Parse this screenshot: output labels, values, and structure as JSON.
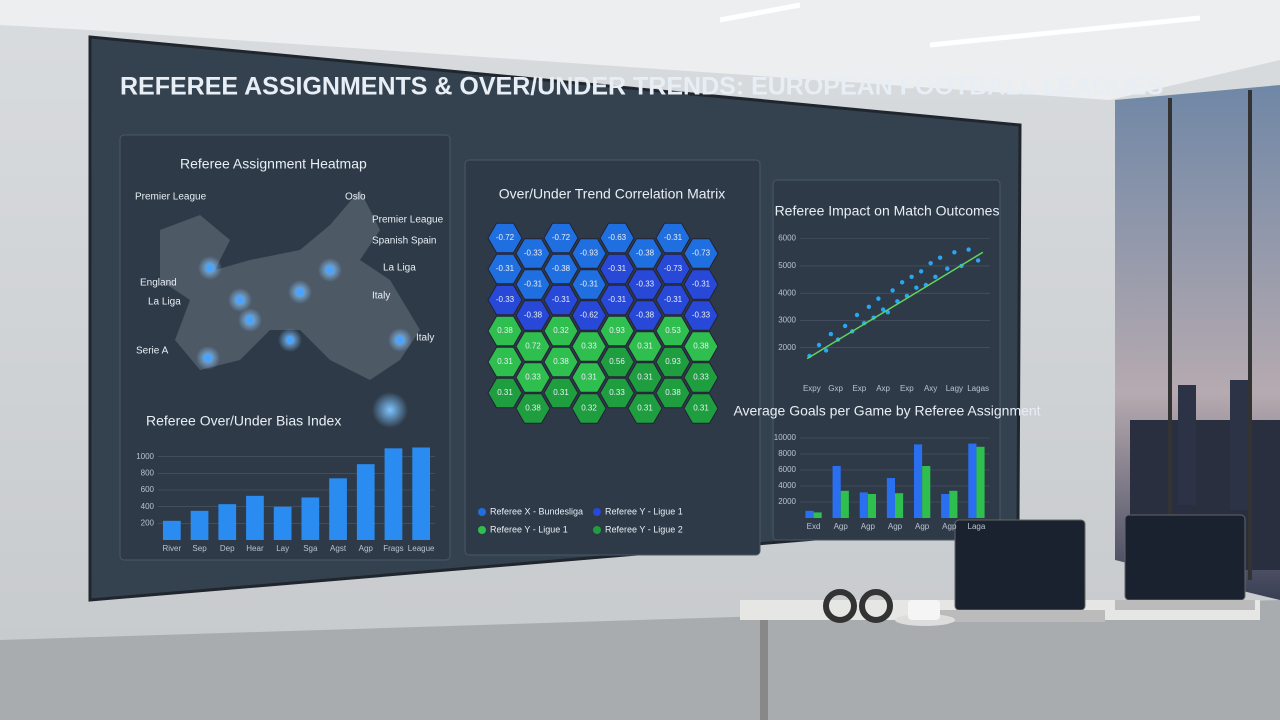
{
  "title": "REFEREE ASSIGNMENTS & OVER/UNDER TRENDS: EUROPEAN FOOTBALL LEAGUES",
  "chart_data": [
    {
      "type": "map",
      "title": "Referee Assignment Heatmap",
      "labels": [
        "Premier League",
        "Oslo",
        "Premier League",
        "Spanish Spain",
        "England",
        "La Liga",
        "La Liga",
        "Italy",
        "Italy",
        "Serie A"
      ]
    },
    {
      "type": "bar",
      "title": "Referee Over/Under Bias Index",
      "categories": [
        "River",
        "Sep",
        "Dep",
        "Hear",
        "Lay",
        "Sga",
        "Agst",
        "Agp",
        "Frags",
        "League"
      ],
      "values": [
        230,
        350,
        430,
        530,
        400,
        510,
        740,
        910,
        1100,
        1110
      ],
      "ylim": [
        0,
        1200
      ],
      "yticks": [
        200,
        400,
        600,
        800,
        1000
      ],
      "color": "#2a8cf0",
      "grid": true
    },
    {
      "type": "hexbin",
      "title": "Over/Under Trend Correlation Matrix",
      "series": [
        {
          "name": "Referee X - Bundesliga",
          "color": "#1f6fe0",
          "values": [
            -0.72,
            -0.33,
            -0.72,
            -0.93,
            -0.63,
            -0.38,
            -0.31,
            -0.73,
            -0.31,
            -0.31,
            -0.38,
            -0.31
          ]
        },
        {
          "name": "Referee Y - Ligue 1",
          "color": "#2848d8",
          "values": [
            -0.31,
            -0.33,
            -0.73,
            -0.31,
            -0.33,
            -0.38,
            -0.31,
            -0.62,
            -0.31,
            -0.38,
            -0.31,
            -0.33
          ]
        },
        {
          "name": "Referee Y - Ligue 1",
          "color": "#2fbf4f",
          "values": [
            0.38,
            0.72,
            0.32,
            0.33,
            0.93,
            0.31,
            0.53,
            0.38,
            0.31,
            0.33,
            0.38,
            0.31
          ]
        },
        {
          "name": "Referee Y - Ligue 2",
          "color": "#1e9e3e",
          "values": [
            0.56,
            0.31,
            0.93,
            0.33,
            0.31,
            0.38,
            0.31,
            0.32,
            0.33,
            0.31,
            0.38,
            0.31
          ]
        }
      ]
    },
    {
      "type": "scatter",
      "title": "Referee Impact on Match Outcomes",
      "x": [
        0.4,
        0.8,
        1.1,
        1.3,
        1.6,
        1.9,
        2.2,
        2.4,
        2.7,
        2.9,
        3.1,
        3.3,
        3.5,
        3.7,
        3.9,
        4.1,
        4.3,
        4.5,
        4.7,
        4.9,
        5.1,
        5.3,
        5.5,
        5.7,
        5.9,
        6.2,
        6.5,
        6.8,
        7.1,
        7.5
      ],
      "y": [
        1700,
        2100,
        1900,
        2500,
        2300,
        2800,
        2600,
        3200,
        2900,
        3500,
        3100,
        3800,
        3400,
        3300,
        4100,
        3700,
        4400,
        3900,
        4600,
        4200,
        4800,
        4300,
        5100,
        4600,
        5300,
        4900,
        5500,
        5000,
        5600,
        5200
      ],
      "xlim": [
        0,
        8
      ],
      "ylim": [
        1000,
        6500
      ],
      "xticks": [
        {
          "value": 0.5,
          "label": "Expy"
        },
        {
          "value": 1.5,
          "label": "Gxp"
        },
        {
          "value": 2.5,
          "label": "Exp"
        },
        {
          "value": 3.5,
          "label": "Axp"
        },
        {
          "value": 4.5,
          "label": "Exp"
        },
        {
          "value": 5.5,
          "label": "Axy"
        },
        {
          "value": 6.5,
          "label": "Lagy"
        },
        {
          "value": 7.5,
          "label": "Lagas"
        }
      ],
      "yticks": [
        2000,
        3000,
        4000,
        5000,
        6000
      ],
      "color": "#2aa6f4",
      "trend": {
        "x": [
          0.3,
          7.7
        ],
        "y": [
          1600,
          5500
        ],
        "color": "#5fd35f"
      }
    },
    {
      "type": "grouped_bar",
      "title": "Average Goals per Game by Referee Assignment",
      "categories": [
        "Exd",
        "Agp",
        "Agp",
        "Agp",
        "Agp",
        "Agp",
        "Laga"
      ],
      "series": [
        {
          "color": "#2a6ff0",
          "values": [
            900,
            6500,
            3200,
            5000,
            9200,
            3000,
            9300
          ]
        },
        {
          "color": "#2fbf4f",
          "values": [
            700,
            3400,
            3000,
            3100,
            6500,
            3400,
            8900
          ]
        }
      ],
      "ylim": [
        0,
        11000
      ],
      "yticks": [
        2000,
        4000,
        6000,
        8000,
        10000
      ],
      "grid": true
    }
  ]
}
